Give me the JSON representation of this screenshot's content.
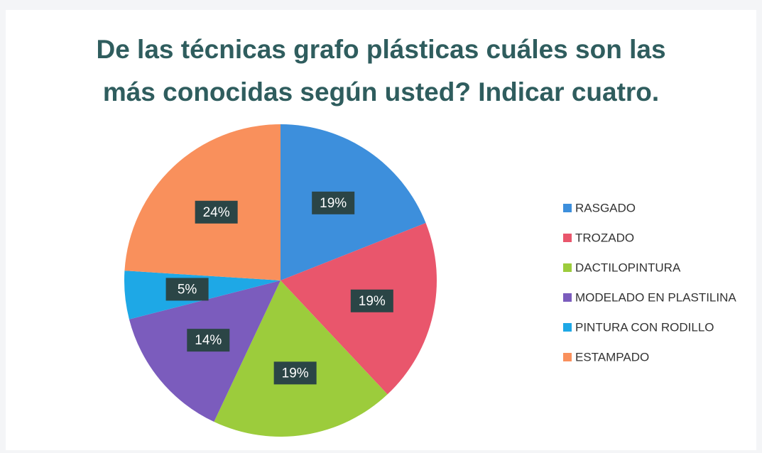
{
  "chart_data": {
    "type": "pie",
    "title": "De las técnicas grafo plásticas cuáles son las\nmás conocidas según usted? Indicar cuatro.",
    "categories": [
      "RASGADO",
      "TROZADO",
      "DACTILOPINTURA",
      "MODELADO EN PLASTILINA",
      "PINTURA CON RODILLO",
      "ESTAMPADO"
    ],
    "values": [
      19,
      19,
      19,
      14,
      5,
      24
    ],
    "value_labels": [
      "19%",
      "19%",
      "19%",
      "14%",
      "5%",
      "24%"
    ],
    "colors": [
      "#3d8fdc",
      "#e9566c",
      "#9ccc3c",
      "#7b5cbd",
      "#1ea8e6",
      "#f9905c"
    ],
    "legend": "right"
  }
}
